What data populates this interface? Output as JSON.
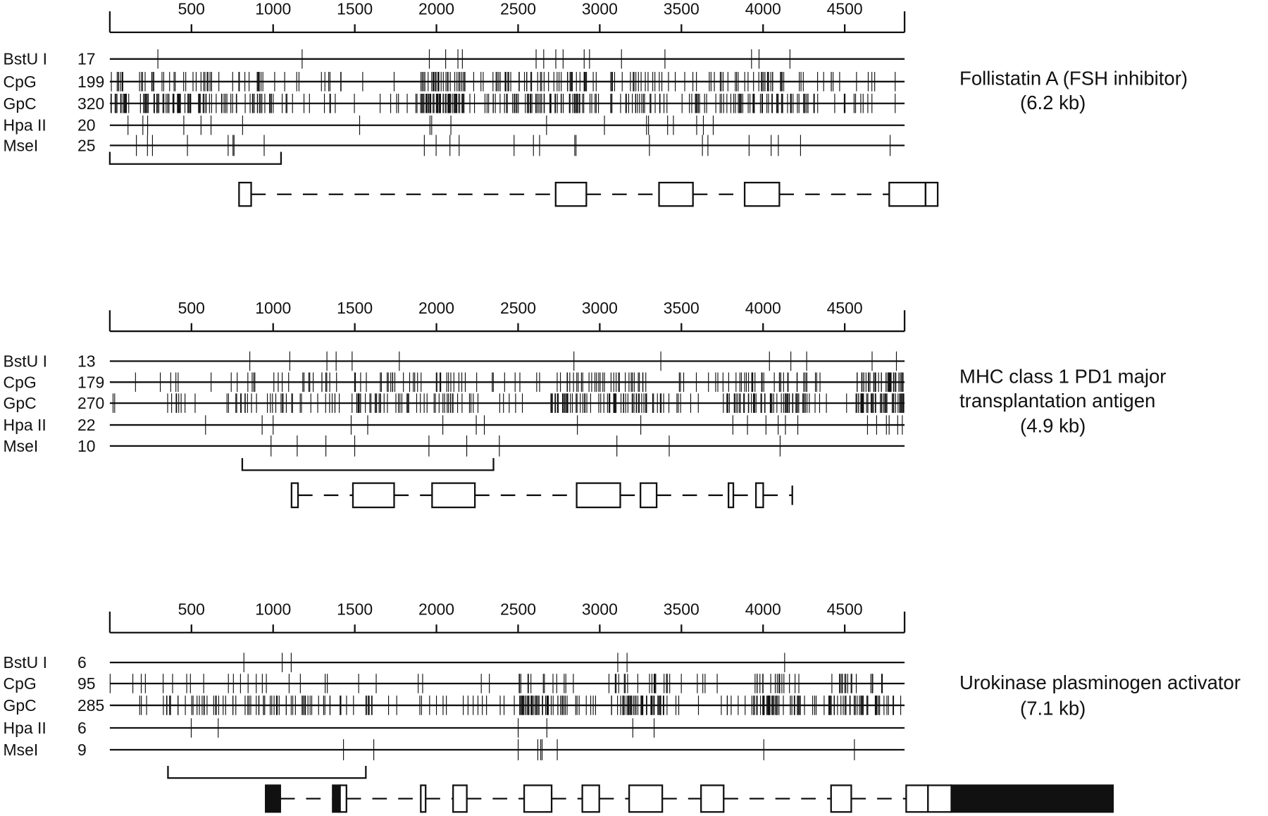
{
  "panels": [
    {
      "ruler": {
        "ticks": [
          500,
          1000,
          1500,
          2000,
          2500,
          3000,
          3500,
          4000,
          4500
        ]
      },
      "rows": [
        {
          "enzyme": "BstU I",
          "count": 17
        },
        {
          "enzyme": "CpG",
          "count": 199
        },
        {
          "enzyme": "GpC",
          "count": 320
        },
        {
          "enzyme": "Hpa II",
          "count": 20
        },
        {
          "enzyme": "MseI",
          "count": 25
        }
      ],
      "gene": [
        "Follistatin A (FSH inhibitor)"
      ],
      "size": "(6.2 kb)"
    },
    {
      "ruler": {
        "ticks": [
          500,
          1000,
          1500,
          2000,
          2500,
          3000,
          3500,
          4000,
          4500
        ]
      },
      "rows": [
        {
          "enzyme": "BstU I",
          "count": 13
        },
        {
          "enzyme": "CpG",
          "count": 179
        },
        {
          "enzyme": "GpC",
          "count": 270
        },
        {
          "enzyme": "Hpa II",
          "count": 22
        },
        {
          "enzyme": "MseI",
          "count": 10
        }
      ],
      "gene": [
        "MHC class 1 PD1 major",
        "transplantation antigen"
      ],
      "size": "(4.9 kb)"
    },
    {
      "ruler": {
        "ticks": [
          500,
          1000,
          1500,
          2000,
          2500,
          3000,
          3500,
          4000,
          4500
        ]
      },
      "rows": [
        {
          "enzyme": "BstU I",
          "count": 6
        },
        {
          "enzyme": "CpG",
          "count": 95
        },
        {
          "enzyme": "GpC",
          "count": 285
        },
        {
          "enzyme": "Hpa II",
          "count": 6
        },
        {
          "enzyme": "MseI",
          "count": 9
        }
      ],
      "gene": [
        "Urokinase plasminogen activator"
      ],
      "size": "(7.1 kb)"
    }
  ]
}
